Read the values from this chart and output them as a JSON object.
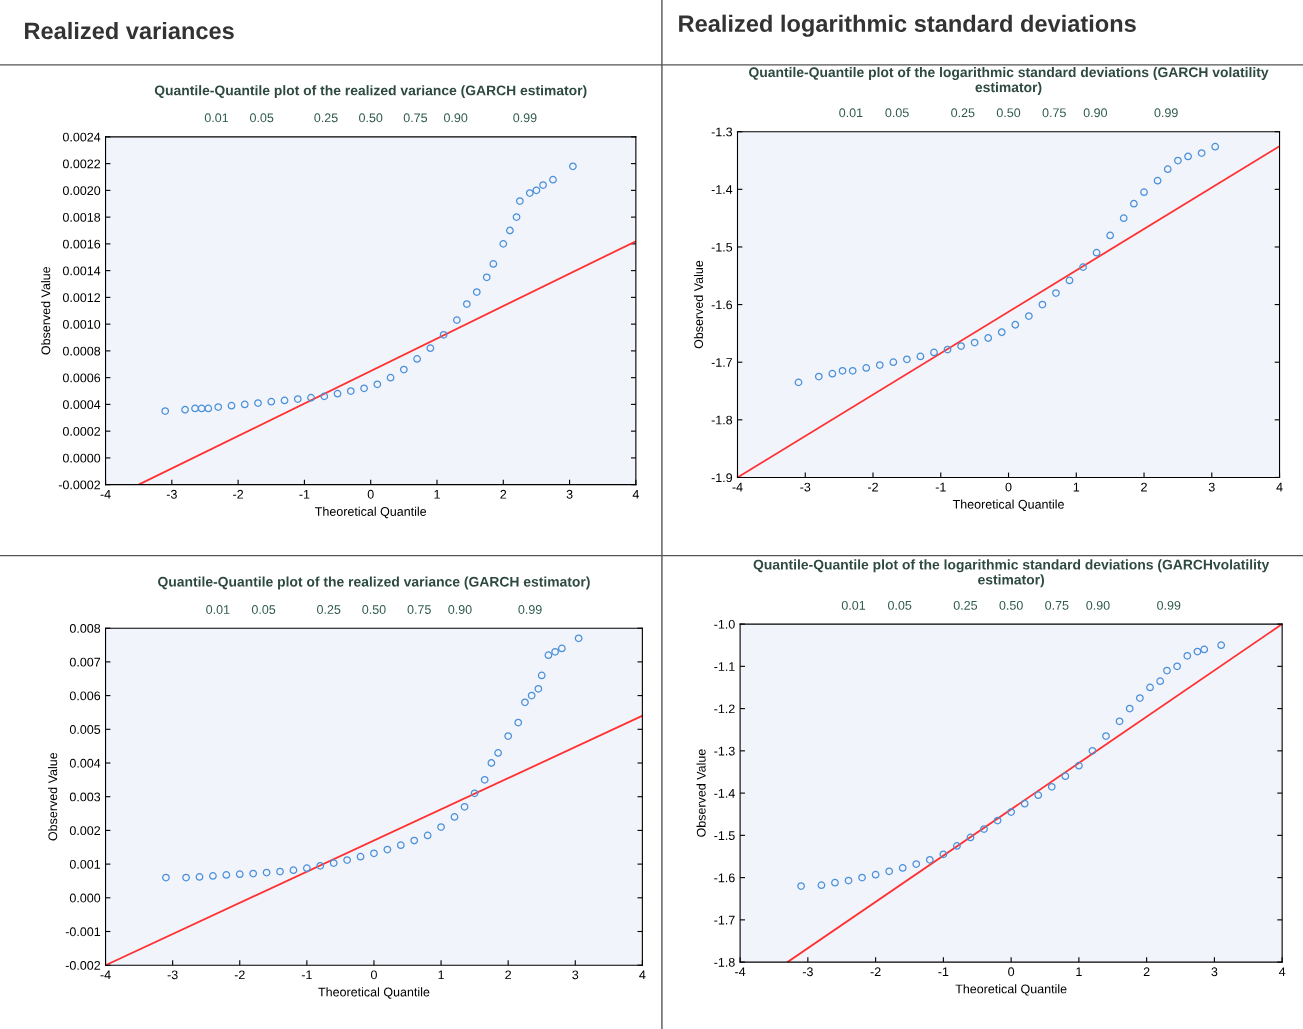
{
  "chart_data": [
    {
      "type": "scatter",
      "title": "Quantile-Quantile plot of the realized variance (GARCH estimator)",
      "xlabel": "Theoretical Quantile",
      "ylabel": "Observed Value",
      "annotations": [
        "Realized variances",
        "0.01",
        "0.05",
        "0.25",
        "0.50",
        "0.75",
        "0.90",
        "0.99"
      ],
      "marker": "circle",
      "grid": false,
      "xlim": [
        -4,
        4
      ],
      "xticks": [
        -4,
        -3,
        -2,
        -1,
        0,
        1,
        2,
        3,
        4
      ],
      "ylim": [
        -0.0002,
        0.0024
      ],
      "yticks": [
        {
          "value": -0.0002,
          "label": "-0.0002"
        },
        {
          "value": 0,
          "label": "0.0000"
        },
        {
          "value": 0.0002,
          "label": "0.0002"
        },
        {
          "value": 0.0004,
          "label": "0.0004"
        },
        {
          "value": 0.0006,
          "label": "0.0006"
        },
        {
          "value": 0.0008,
          "label": "0.0008"
        },
        {
          "value": 0.001,
          "label": "0.0010"
        },
        {
          "value": 0.0012,
          "label": "0.0012"
        },
        {
          "value": 0.0014,
          "label": "0.0014"
        },
        {
          "value": 0.0016,
          "label": "0.0016"
        },
        {
          "value": 0.0018,
          "label": "0.0018"
        },
        {
          "value": 0.002,
          "label": "0.0020"
        },
        {
          "value": 0.0022,
          "label": "0.0022"
        },
        {
          "value": 0.0024,
          "label": "0.0024"
        }
      ],
      "series": [
        {
          "color": "#4a90d9",
          "x": [
            -3.1,
            -2.8,
            -2.65,
            -2.55,
            -2.45,
            -2.3,
            -2.1,
            -1.9,
            -1.7,
            -1.5,
            -1.3,
            -1.1,
            -0.9,
            -0.7,
            -0.5,
            -0.3,
            -0.1,
            0.1,
            0.3,
            0.5,
            0.7,
            0.9,
            1.1,
            1.3,
            1.45,
            1.6,
            1.75,
            1.85,
            2.0,
            2.1,
            2.2,
            2.25,
            2.4,
            2.5,
            2.6,
            2.75,
            3.05
          ],
          "values": [
            0.00035,
            0.00036,
            0.00037,
            0.00037,
            0.00037,
            0.00038,
            0.00039,
            0.0004,
            0.00041,
            0.00042,
            0.00043,
            0.00044,
            0.00045,
            0.00046,
            0.00048,
            0.0005,
            0.00052,
            0.00055,
            0.0006,
            0.00066,
            0.00074,
            0.00082,
            0.00092,
            0.00103,
            0.00115,
            0.00124,
            0.00135,
            0.00145,
            0.0016,
            0.0017,
            0.0018,
            0.00192,
            0.00198,
            0.002,
            0.00204,
            0.00208,
            0.00218
          ]
        },
        {
          "type": "line",
          "marker": "none",
          "color": "#ff3030",
          "x": [
            -3.5,
            4
          ],
          "values": [
            -0.0002,
            0.00162
          ]
        }
      ]
    },
    {
      "type": "scatter",
      "title": "Quantile-Quantile plot of the logarithmic standard deviations (GARCH volatility estimator)",
      "xlabel": "Theoretical Quantile",
      "ylabel": "Observed Value",
      "annotations": [
        "Realized logarithmic standard deviations",
        "0.01",
        "0.05",
        "0.25",
        "0.50",
        "0.75",
        "0.90",
        "0.99"
      ],
      "marker": "circle",
      "grid": false,
      "xlim": [
        -4,
        4
      ],
      "xticks": [
        -4,
        -3,
        -2,
        -1,
        0,
        1,
        2,
        3,
        4
      ],
      "ylim": [
        -1.9,
        -1.3
      ],
      "yticks": [
        -1.9,
        -1.8,
        -1.7,
        -1.6,
        -1.5,
        -1.4,
        -1.3
      ],
      "series": [
        {
          "color": "#4a90d9",
          "x": [
            -3.1,
            -2.8,
            -2.6,
            -2.45,
            -2.3,
            -2.1,
            -1.9,
            -1.7,
            -1.5,
            -1.3,
            -1.1,
            -0.9,
            -0.7,
            -0.5,
            -0.3,
            -0.1,
            0.1,
            0.3,
            0.5,
            0.7,
            0.9,
            1.1,
            1.3,
            1.5,
            1.7,
            1.85,
            2.0,
            2.2,
            2.35,
            2.5,
            2.65,
            2.85,
            3.05
          ],
          "values": [
            -1.735,
            -1.725,
            -1.72,
            -1.715,
            -1.715,
            -1.71,
            -1.705,
            -1.7,
            -1.695,
            -1.69,
            -1.683,
            -1.678,
            -1.672,
            -1.666,
            -1.658,
            -1.648,
            -1.635,
            -1.62,
            -1.6,
            -1.58,
            -1.558,
            -1.535,
            -1.51,
            -1.48,
            -1.45,
            -1.425,
            -1.405,
            -1.385,
            -1.365,
            -1.35,
            -1.343,
            -1.337,
            -1.326
          ]
        },
        {
          "type": "line",
          "marker": "none",
          "color": "#ff3030",
          "x": [
            -4,
            4
          ],
          "values": [
            -1.9,
            -1.325
          ]
        }
      ]
    },
    {
      "type": "scatter",
      "title": "Quantile-Quantile plot of the realized variance (GARCH estimator)",
      "xlabel": "Theoretical Quantile",
      "ylabel": "Observed Value",
      "annotations": [
        "0.01",
        "0.05",
        "0.25",
        "0.50",
        "0.75",
        "0.90",
        "0.99"
      ],
      "marker": "circle",
      "grid": false,
      "xlim": [
        -4,
        4
      ],
      "xticks": [
        -4,
        -3,
        -2,
        -1,
        0,
        1,
        2,
        3,
        4
      ],
      "ylim": [
        -0.002,
        0.008
      ],
      "yticks": [
        {
          "value": -0.002,
          "label": "-0.002"
        },
        {
          "value": -0.001,
          "label": "-0.001"
        },
        {
          "value": 0,
          "label": "0.000"
        },
        {
          "value": 0.001,
          "label": "0.001"
        },
        {
          "value": 0.002,
          "label": "0.002"
        },
        {
          "value": 0.003,
          "label": "0.003"
        },
        {
          "value": 0.004,
          "label": "0.004"
        },
        {
          "value": 0.005,
          "label": "0.005"
        },
        {
          "value": 0.006,
          "label": "0.006"
        },
        {
          "value": 0.007,
          "label": "0.007"
        },
        {
          "value": 0.008,
          "label": "0.008"
        }
      ],
      "series": [
        {
          "color": "#4a90d9",
          "x": [
            -3.1,
            -2.8,
            -2.6,
            -2.4,
            -2.2,
            -2.0,
            -1.8,
            -1.6,
            -1.4,
            -1.2,
            -1.0,
            -0.8,
            -0.6,
            -0.4,
            -0.2,
            0,
            0.2,
            0.4,
            0.6,
            0.8,
            1.0,
            1.2,
            1.35,
            1.5,
            1.65,
            1.75,
            1.85,
            2.0,
            2.15,
            2.25,
            2.35,
            2.45,
            2.5,
            2.6,
            2.7,
            2.8,
            3.05
          ],
          "values": [
            0.0006,
            0.0006,
            0.00062,
            0.00065,
            0.00068,
            0.0007,
            0.00072,
            0.00075,
            0.00078,
            0.00082,
            0.00088,
            0.00095,
            0.00103,
            0.00112,
            0.00122,
            0.00132,
            0.00143,
            0.00156,
            0.0017,
            0.00185,
            0.0021,
            0.0024,
            0.0027,
            0.0031,
            0.0035,
            0.004,
            0.0043,
            0.0048,
            0.0052,
            0.0058,
            0.006,
            0.0062,
            0.0066,
            0.0072,
            0.0073,
            0.0074,
            0.0077
          ]
        },
        {
          "type": "line",
          "marker": "none",
          "color": "#ff3030",
          "x": [
            -4,
            4
          ],
          "values": [
            -0.002,
            0.0054
          ]
        }
      ]
    },
    {
      "type": "scatter",
      "title": "Quantile-Quantile plot of the logarithmic standard deviations (GARCHvolatility estimator)",
      "xlabel": "Theoretical Quantile",
      "ylabel": "Observed Value",
      "annotations": [
        "0.01",
        "0.05",
        "0.25",
        "0.50",
        "0.75",
        "0.90",
        "0.99"
      ],
      "marker": "circle",
      "grid": false,
      "xlim": [
        -4,
        4
      ],
      "xticks": [
        -4,
        -3,
        -2,
        -1,
        0,
        1,
        2,
        3,
        4
      ],
      "ylim": [
        -1.8,
        -1.0
      ],
      "yticks": [
        -1.8,
        -1.7,
        -1.6,
        -1.5,
        -1.4,
        -1.3,
        -1.2,
        -1.1,
        {
          "value": -1.0,
          "label": "-1.0"
        }
      ],
      "series": [
        {
          "color": "#4a90d9",
          "x": [
            -3.1,
            -2.8,
            -2.6,
            -2.4,
            -2.2,
            -2.0,
            -1.8,
            -1.6,
            -1.4,
            -1.2,
            -1.0,
            -0.8,
            -0.6,
            -0.4,
            -0.2,
            0,
            0.2,
            0.4,
            0.6,
            0.8,
            1.0,
            1.2,
            1.4,
            1.6,
            1.75,
            1.9,
            2.05,
            2.2,
            2.3,
            2.45,
            2.6,
            2.75,
            2.85,
            3.1
          ],
          "values": [
            -1.62,
            -1.618,
            -1.612,
            -1.607,
            -1.6,
            -1.593,
            -1.585,
            -1.577,
            -1.568,
            -1.558,
            -1.545,
            -1.525,
            -1.505,
            -1.485,
            -1.465,
            -1.445,
            -1.425,
            -1.405,
            -1.385,
            -1.36,
            -1.335,
            -1.3,
            -1.265,
            -1.23,
            -1.2,
            -1.175,
            -1.15,
            -1.135,
            -1.11,
            -1.1,
            -1.075,
            -1.065,
            -1.06,
            -1.05
          ]
        },
        {
          "type": "line",
          "marker": "none",
          "color": "#ff3030",
          "x": [
            -3.3,
            4
          ],
          "values": [
            -1.8,
            -1.0
          ]
        }
      ]
    }
  ]
}
